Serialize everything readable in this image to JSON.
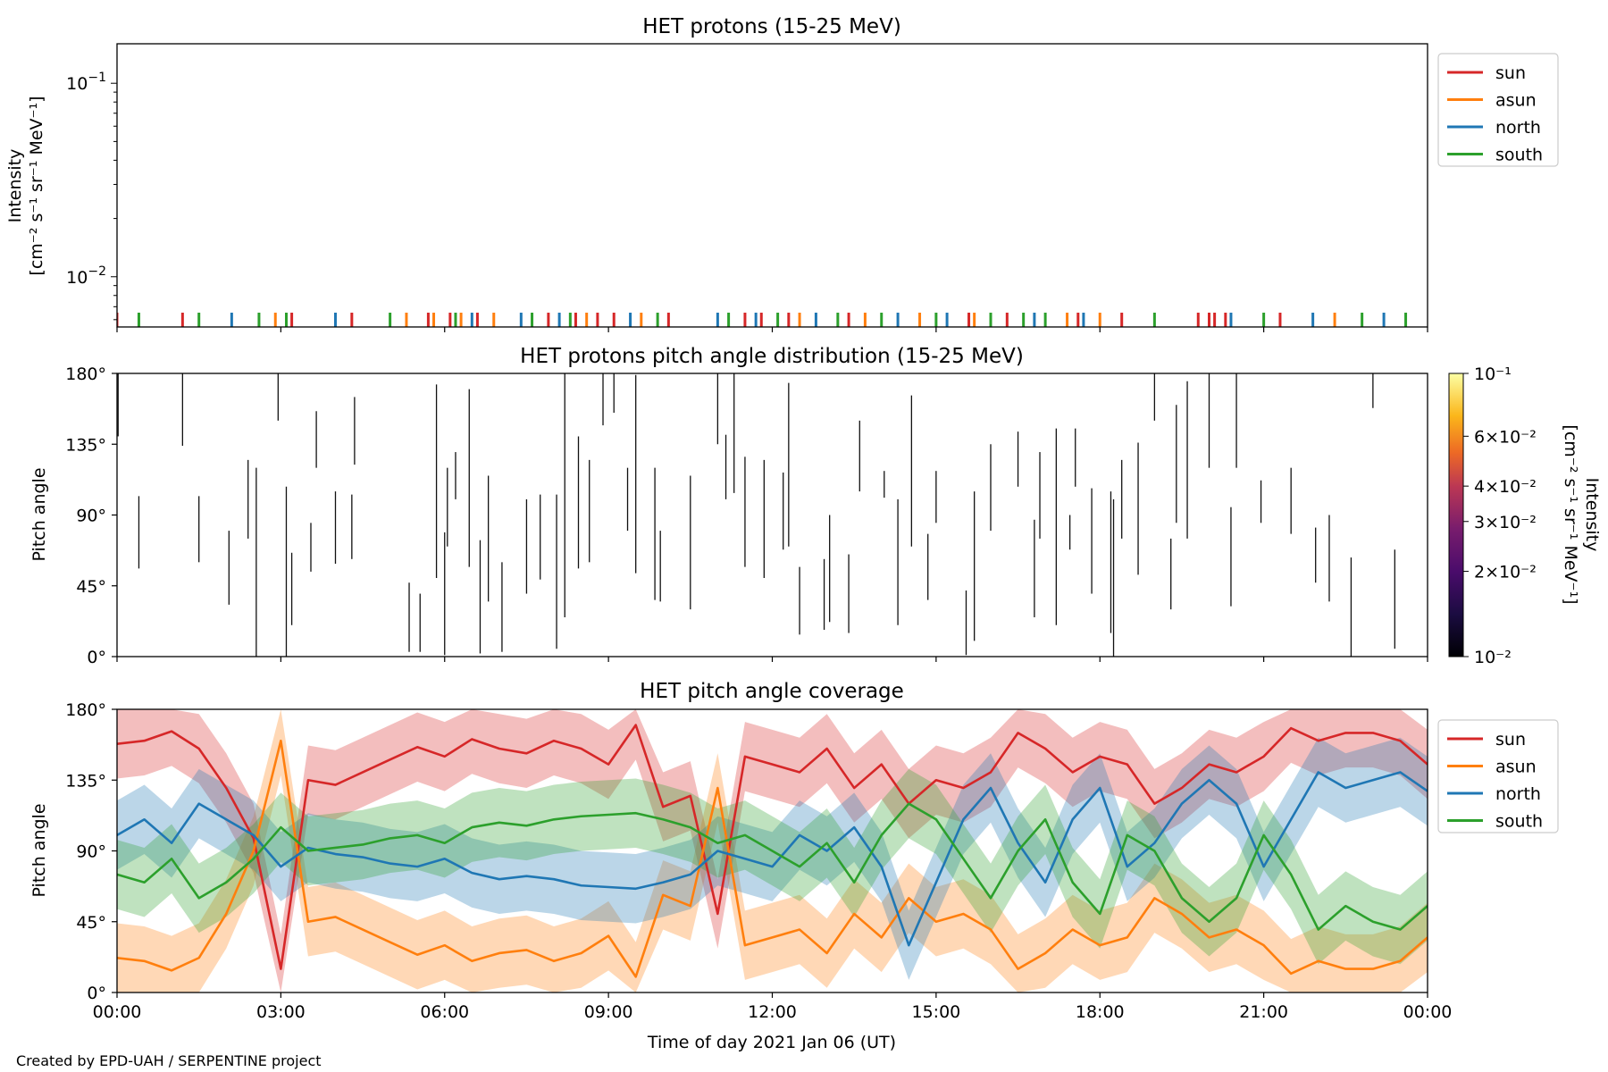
{
  "footer": "Created by EPD-UAH / SERPENTINE project",
  "colors": {
    "sun": "#d62728",
    "asun": "#ff7f0e",
    "north": "#1f77b4",
    "south": "#2ca02c"
  },
  "chart_data": [
    {
      "type": "line",
      "title": "HET protons (15-25 MeV)",
      "ylabel": [
        "Intensity",
        "[cm⁻² s⁻¹ sr⁻¹ MeV⁻¹]"
      ],
      "yscale": "log",
      "ylim": [
        0.0055,
        0.16
      ],
      "yticks": [
        {
          "v": 0.1,
          "base": "10",
          "exp": "−1"
        },
        {
          "v": 0.01,
          "base": "10",
          "exp": "−2"
        }
      ],
      "xlim_hours": [
        0,
        24
      ],
      "legend": "outside-right",
      "series": [
        {
          "name": "sun",
          "hours": [
            0.0,
            1.2,
            3.2,
            4.3,
            5.7,
            6.1,
            6.6,
            7.9,
            8.4,
            8.8,
            9.1,
            10.1,
            11.5,
            11.8,
            12.3,
            13.4,
            15.6,
            16.3,
            17.6,
            18.4,
            19.8,
            20.0,
            20.1,
            20.3,
            21.3
          ],
          "values": [
            0.0058,
            0.0058,
            0.0058,
            0.0058,
            0.0058,
            0.0058,
            0.0058,
            0.0058,
            0.0058,
            0.0058,
            0.0058,
            0.0058,
            0.0058,
            0.0058,
            0.0058,
            0.0058,
            0.0058,
            0.0058,
            0.0058,
            0.0058,
            0.0058,
            0.0058,
            0.0058,
            0.0058,
            0.0058
          ]
        },
        {
          "name": "asun",
          "hours": [
            2.9,
            5.3,
            5.8,
            6.3,
            6.9,
            8.6,
            9.6,
            12.5,
            13.7,
            14.7,
            15.7,
            17.4,
            18.0,
            22.3
          ],
          "values": [
            0.0058,
            0.0058,
            0.0058,
            0.0058,
            0.0058,
            0.0058,
            0.0058,
            0.0058,
            0.0058,
            0.0058,
            0.0058,
            0.0058,
            0.0058,
            0.0058
          ]
        },
        {
          "name": "north",
          "hours": [
            2.1,
            4.0,
            6.5,
            7.4,
            8.1,
            9.4,
            11.0,
            11.7,
            12.8,
            14.3,
            15.2,
            16.8,
            17.7,
            20.4,
            21.9,
            23.2
          ],
          "values": [
            0.0058,
            0.0058,
            0.0058,
            0.0058,
            0.0058,
            0.0058,
            0.0058,
            0.0058,
            0.0058,
            0.0058,
            0.0058,
            0.0058,
            0.0058,
            0.0058,
            0.0058,
            0.0058
          ]
        },
        {
          "name": "south",
          "hours": [
            0.4,
            1.5,
            2.6,
            3.1,
            5.0,
            6.2,
            7.6,
            8.3,
            9.9,
            11.2,
            12.1,
            13.2,
            14.0,
            15.0,
            16.0,
            16.6,
            17.0,
            19.0,
            21.0,
            22.8,
            23.6
          ],
          "values": [
            0.0058,
            0.0058,
            0.0058,
            0.0058,
            0.0058,
            0.0058,
            0.0058,
            0.0058,
            0.0058,
            0.0058,
            0.0058,
            0.0058,
            0.0058,
            0.0058,
            0.0058,
            0.0058,
            0.0058,
            0.0058,
            0.0058,
            0.0058,
            0.0058
          ]
        }
      ]
    },
    {
      "type": "heatmap",
      "title": "HET protons pitch angle distribution (15-25 MeV)",
      "ylabel": "Pitch angle",
      "ylim": [
        0,
        180
      ],
      "yticks": [
        "0°",
        "45°",
        "90°",
        "135°",
        "180°"
      ],
      "xlim_hours": [
        0,
        24
      ],
      "colorbar": {
        "label": [
          "Intensity",
          "[cm⁻² s⁻¹ sr⁻¹ MeV⁻¹]"
        ],
        "scale": "log",
        "range": [
          0.01,
          0.1
        ],
        "ticks": [
          {
            "v": 0.1,
            "text": "10⁻¹"
          },
          {
            "v": 0.06,
            "text": "6×10⁻²"
          },
          {
            "v": 0.04,
            "text": "4×10⁻²"
          },
          {
            "v": 0.03,
            "text": "3×10⁻²"
          },
          {
            "v": 0.02,
            "text": "2×10⁻²"
          },
          {
            "v": 0.01,
            "text": "10⁻²"
          }
        ]
      },
      "segments": [
        [
          0.02,
          140,
          180
        ],
        [
          0.4,
          56,
          102
        ],
        [
          1.2,
          134,
          180
        ],
        [
          1.5,
          60,
          102
        ],
        [
          2.05,
          33,
          80
        ],
        [
          2.4,
          75,
          125
        ],
        [
          2.55,
          0,
          120
        ],
        [
          2.95,
          150,
          180
        ],
        [
          3.1,
          0,
          108
        ],
        [
          3.2,
          20,
          66
        ],
        [
          3.55,
          54,
          85
        ],
        [
          3.65,
          120,
          156
        ],
        [
          4.0,
          59,
          105
        ],
        [
          4.3,
          62,
          103
        ],
        [
          4.35,
          122,
          165
        ],
        [
          5.35,
          3,
          47
        ],
        [
          5.55,
          3,
          40
        ],
        [
          5.85,
          50,
          173
        ],
        [
          6.0,
          1,
          79
        ],
        [
          6.05,
          70,
          120
        ],
        [
          6.2,
          100,
          130
        ],
        [
          6.45,
          57,
          170
        ],
        [
          6.65,
          2,
          74
        ],
        [
          6.8,
          35,
          115
        ],
        [
          7.05,
          3,
          60
        ],
        [
          7.5,
          40,
          100
        ],
        [
          7.75,
          49,
          103
        ],
        [
          8.05,
          5,
          103
        ],
        [
          8.2,
          25,
          180
        ],
        [
          8.45,
          56,
          140
        ],
        [
          8.65,
          60,
          125
        ],
        [
          8.9,
          147,
          180
        ],
        [
          9.1,
          155,
          180
        ],
        [
          9.35,
          80,
          120
        ],
        [
          9.5,
          53,
          179
        ],
        [
          9.85,
          36,
          120
        ],
        [
          9.95,
          35,
          80
        ],
        [
          10.5,
          30,
          115
        ],
        [
          11.0,
          135,
          180
        ],
        [
          11.15,
          100,
          141
        ],
        [
          11.3,
          104,
          180
        ],
        [
          11.5,
          57,
          127
        ],
        [
          11.85,
          50,
          125
        ],
        [
          12.2,
          68,
          117
        ],
        [
          12.3,
          70,
          174
        ],
        [
          12.5,
          14,
          57
        ],
        [
          12.95,
          17,
          62
        ],
        [
          13.05,
          22,
          90
        ],
        [
          13.4,
          15,
          65
        ],
        [
          13.6,
          105,
          150
        ],
        [
          14.05,
          101,
          118
        ],
        [
          14.3,
          20,
          100
        ],
        [
          14.55,
          70,
          166
        ],
        [
          14.85,
          36,
          78
        ],
        [
          15.0,
          85,
          118
        ],
        [
          15.55,
          1,
          42
        ],
        [
          15.7,
          10,
          105
        ],
        [
          16.0,
          80,
          135
        ],
        [
          16.5,
          108,
          143
        ],
        [
          16.8,
          25,
          87
        ],
        [
          16.9,
          75,
          130
        ],
        [
          17.2,
          20,
          145
        ],
        [
          17.45,
          68,
          90
        ],
        [
          17.55,
          108,
          145
        ],
        [
          17.85,
          40,
          107
        ],
        [
          18.2,
          15,
          105
        ],
        [
          18.25,
          0,
          100
        ],
        [
          18.4,
          75,
          125
        ],
        [
          18.7,
          52,
          136
        ],
        [
          19.0,
          150,
          180
        ],
        [
          19.3,
          30,
          75
        ],
        [
          19.4,
          85,
          160
        ],
        [
          19.6,
          75,
          175
        ],
        [
          20.0,
          120,
          180
        ],
        [
          20.4,
          32,
          95
        ],
        [
          20.5,
          120,
          180
        ],
        [
          20.95,
          85,
          112
        ],
        [
          21.5,
          78,
          120
        ],
        [
          21.95,
          47,
          82
        ],
        [
          22.2,
          35,
          90
        ],
        [
          22.6,
          0,
          63
        ],
        [
          23.0,
          158,
          180
        ],
        [
          23.4,
          5,
          68
        ]
      ]
    },
    {
      "type": "area",
      "title": "HET pitch angle coverage",
      "ylabel": "Pitch angle",
      "xlabel": "Time of day 2021 Jan 06 (UT)",
      "ylim": [
        0,
        180
      ],
      "yticks": [
        "0°",
        "45°",
        "90°",
        "135°",
        "180°"
      ],
      "xticks": [
        "00:00",
        "03:00",
        "06:00",
        "09:00",
        "12:00",
        "15:00",
        "18:00",
        "21:00",
        "00:00"
      ],
      "xlim_hours": [
        0,
        24
      ],
      "band_half_width_deg": 22,
      "legend": "outside-right",
      "series": [
        {
          "name": "sun",
          "hours": [
            0,
            0.5,
            1,
            1.5,
            2,
            2.5,
            3,
            3.5,
            4,
            4.5,
            5,
            5.5,
            6,
            6.5,
            7,
            7.5,
            8,
            8.5,
            9,
            9.5,
            10,
            10.5,
            11,
            11.5,
            12,
            12.5,
            13,
            13.5,
            14,
            14.5,
            15,
            15.5,
            16,
            16.5,
            17,
            17.5,
            18,
            18.5,
            19,
            19.5,
            20,
            20.5,
            21,
            21.5,
            22,
            22.5,
            23,
            23.5,
            24
          ],
          "values": [
            158,
            160,
            166,
            155,
            130,
            98,
            15,
            135,
            132,
            140,
            148,
            156,
            150,
            161,
            155,
            152,
            160,
            155,
            145,
            170,
            118,
            125,
            50,
            150,
            145,
            140,
            155,
            130,
            145,
            120,
            135,
            130,
            140,
            165,
            155,
            140,
            150,
            145,
            120,
            130,
            145,
            140,
            150,
            168,
            160,
            165,
            165,
            160,
            145
          ]
        },
        {
          "name": "asun",
          "hours": [
            0,
            0.5,
            1,
            1.5,
            2,
            2.5,
            3,
            3.5,
            4,
            4.5,
            5,
            5.5,
            6,
            6.5,
            7,
            7.5,
            8,
            8.5,
            9,
            9.5,
            10,
            10.5,
            11,
            11.5,
            12,
            12.5,
            13,
            13.5,
            14,
            14.5,
            15,
            15.5,
            16,
            16.5,
            17,
            17.5,
            18,
            18.5,
            19,
            19.5,
            20,
            20.5,
            21,
            21.5,
            22,
            22.5,
            23,
            23.5,
            24
          ],
          "values": [
            22,
            20,
            14,
            22,
            50,
            90,
            160,
            45,
            48,
            40,
            32,
            24,
            30,
            20,
            25,
            27,
            20,
            25,
            36,
            10,
            62,
            55,
            130,
            30,
            35,
            40,
            25,
            50,
            35,
            60,
            45,
            50,
            40,
            15,
            25,
            40,
            30,
            35,
            60,
            50,
            35,
            40,
            30,
            12,
            20,
            15,
            15,
            20,
            35
          ]
        },
        {
          "name": "north",
          "hours": [
            0,
            0.5,
            1,
            1.5,
            2,
            2.5,
            3,
            3.5,
            4,
            4.5,
            5,
            5.5,
            6,
            6.5,
            7,
            7.5,
            8,
            8.5,
            9,
            9.5,
            10,
            10.5,
            11,
            11.5,
            12,
            12.5,
            13,
            13.5,
            14,
            14.5,
            15,
            15.5,
            16,
            16.5,
            17,
            17.5,
            18,
            18.5,
            19,
            19.5,
            20,
            20.5,
            21,
            21.5,
            22,
            22.5,
            23,
            23.5,
            24
          ],
          "values": [
            100,
            110,
            95,
            120,
            110,
            100,
            80,
            92,
            88,
            86,
            82,
            80,
            85,
            76,
            72,
            74,
            72,
            68,
            67,
            66,
            70,
            75,
            90,
            85,
            80,
            100,
            90,
            105,
            80,
            30,
            70,
            110,
            130,
            95,
            70,
            110,
            130,
            80,
            95,
            120,
            135,
            120,
            80,
            110,
            140,
            130,
            135,
            140,
            128
          ]
        },
        {
          "name": "south",
          "hours": [
            0,
            0.5,
            1,
            1.5,
            2,
            2.5,
            3,
            3.5,
            4,
            4.5,
            5,
            5.5,
            6,
            6.5,
            7,
            7.5,
            8,
            8.5,
            9,
            9.5,
            10,
            10.5,
            11,
            11.5,
            12,
            12.5,
            13,
            13.5,
            14,
            14.5,
            15,
            15.5,
            16,
            16.5,
            17,
            17.5,
            18,
            18.5,
            19,
            19.5,
            20,
            20.5,
            21,
            21.5,
            22,
            22.5,
            23,
            23.5,
            24
          ],
          "values": [
            75,
            70,
            85,
            60,
            70,
            85,
            105,
            90,
            92,
            94,
            98,
            100,
            95,
            105,
            108,
            106,
            110,
            112,
            113,
            114,
            110,
            105,
            95,
            100,
            90,
            80,
            95,
            70,
            100,
            120,
            110,
            85,
            60,
            90,
            110,
            70,
            50,
            100,
            90,
            60,
            45,
            60,
            100,
            75,
            40,
            55,
            45,
            40,
            55
          ]
        }
      ]
    }
  ]
}
